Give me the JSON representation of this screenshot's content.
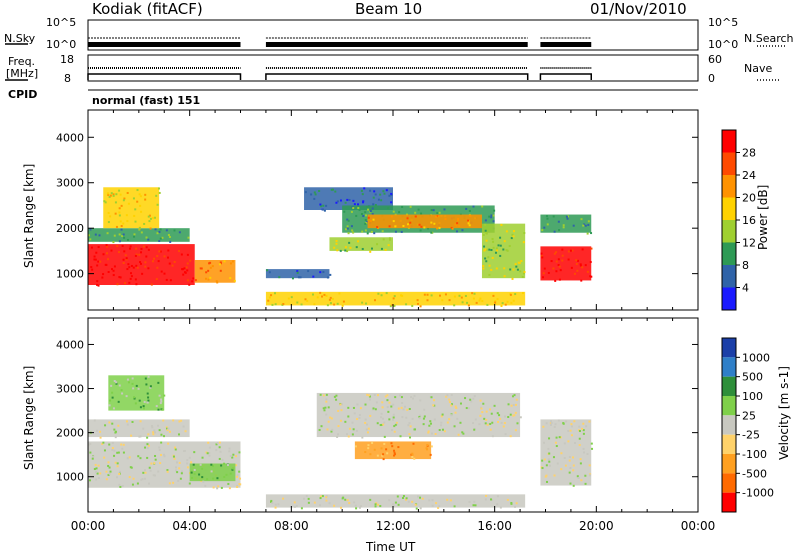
{
  "header": {
    "station": "Kodiak (fitACF)",
    "beam": "Beam 10",
    "date": "01/Nov/2010"
  },
  "top_panels": {
    "nsky_label": "N.Sky",
    "nsearch_label": "N.Search",
    "nsky_ticks": [
      "10^5",
      "10^0"
    ],
    "freq_label_1": "Freq.",
    "freq_label_2": "[MHz]",
    "freq_ticks": [
      "18",
      "8"
    ],
    "nave_label": "Nave",
    "nave_ticks": [
      "60",
      "0"
    ],
    "cpid_label": "CPID",
    "cpid_value": "normal (fast) 151"
  },
  "chart_data": [
    {
      "type": "heatmap",
      "name": "power",
      "ylabel": "Slant Range [km]",
      "yticks": [
        1000,
        2000,
        3000,
        4000
      ],
      "ylim": [
        200,
        4600
      ],
      "xlim": [
        0,
        24
      ],
      "colorbar": {
        "label": "Power [dB]",
        "ticks": [
          "28",
          "24",
          "20",
          "16",
          "12",
          "8",
          "4"
        ],
        "colors": [
          "#ff0000",
          "#ff4a00",
          "#ff9200",
          "#ffd200",
          "#9fcf30",
          "#2e9a55",
          "#2f63a8",
          "#1a1aff"
        ]
      },
      "regions": [
        {
          "t0": 0.0,
          "t1": 4.2,
          "r0": 750,
          "r1": 1650,
          "level": 0
        },
        {
          "t0": 4.2,
          "t1": 5.8,
          "r0": 800,
          "r1": 1300,
          "level": 2
        },
        {
          "t0": 0.0,
          "t1": 4.0,
          "r0": 1700,
          "r1": 2000,
          "level": 5
        },
        {
          "t0": 0.6,
          "t1": 2.8,
          "r0": 2000,
          "r1": 2900,
          "level": 3
        },
        {
          "t0": 7.0,
          "t1": 17.2,
          "r0": 300,
          "r1": 600,
          "level": 3
        },
        {
          "t0": 8.5,
          "t1": 12.0,
          "r0": 2400,
          "r1": 2900,
          "level": 6
        },
        {
          "t0": 10.0,
          "t1": 16.0,
          "r0": 1900,
          "r1": 2500,
          "level": 5
        },
        {
          "t0": 11.0,
          "t1": 15.5,
          "r0": 2000,
          "r1": 2300,
          "level": 2
        },
        {
          "t0": 9.5,
          "t1": 12.0,
          "r0": 1500,
          "r1": 1800,
          "level": 4
        },
        {
          "t0": 15.5,
          "t1": 17.2,
          "r0": 900,
          "r1": 2100,
          "level": 4
        },
        {
          "t0": 17.8,
          "t1": 19.8,
          "r0": 850,
          "r1": 1600,
          "level": 0
        },
        {
          "t0": 17.8,
          "t1": 19.8,
          "r0": 1900,
          "r1": 2300,
          "level": 5
        },
        {
          "t0": 7.0,
          "t1": 9.5,
          "r0": 900,
          "r1": 1100,
          "level": 6
        }
      ]
    },
    {
      "type": "heatmap",
      "name": "velocity",
      "ylabel": "Slant Range [km]",
      "yticks": [
        1000,
        2000,
        3000,
        4000
      ],
      "ylim": [
        200,
        4600
      ],
      "xlim": [
        0,
        24
      ],
      "xticks": [
        "00:00",
        "04:00",
        "08:00",
        "12:00",
        "16:00",
        "20:00",
        "00:00"
      ],
      "xlabel": "Time UT",
      "colorbar": {
        "label": "Velocity [m s-1]",
        "ticks": [
          "1000",
          "500",
          "100",
          "25",
          "-25",
          "-100",
          "-500",
          "-1000"
        ],
        "colors": [
          "#1b3fa8",
          "#2f7fc8",
          "#2e8f3a",
          "#7fd04a",
          "#c8c8c0",
          "#ffd26a",
          "#ffa020",
          "#ff6a00",
          "#ff0000"
        ]
      },
      "regions": [
        {
          "t0": 0.0,
          "t1": 6.0,
          "r0": 750,
          "r1": 1800,
          "level": 4
        },
        {
          "t0": 4.0,
          "t1": 5.8,
          "r0": 900,
          "r1": 1300,
          "level": 3
        },
        {
          "t0": 0.0,
          "t1": 4.0,
          "r0": 1900,
          "r1": 2300,
          "level": 4
        },
        {
          "t0": 9.0,
          "t1": 17.0,
          "r0": 1900,
          "r1": 2900,
          "level": 4
        },
        {
          "t0": 10.5,
          "t1": 13.5,
          "r0": 1400,
          "r1": 1800,
          "level": 6
        },
        {
          "t0": 7.0,
          "t1": 17.2,
          "r0": 300,
          "r1": 600,
          "level": 4
        },
        {
          "t0": 17.8,
          "t1": 19.8,
          "r0": 800,
          "r1": 2300,
          "level": 4
        },
        {
          "t0": 0.8,
          "t1": 3.0,
          "r0": 2500,
          "r1": 3300,
          "level": 3
        }
      ]
    }
  ]
}
